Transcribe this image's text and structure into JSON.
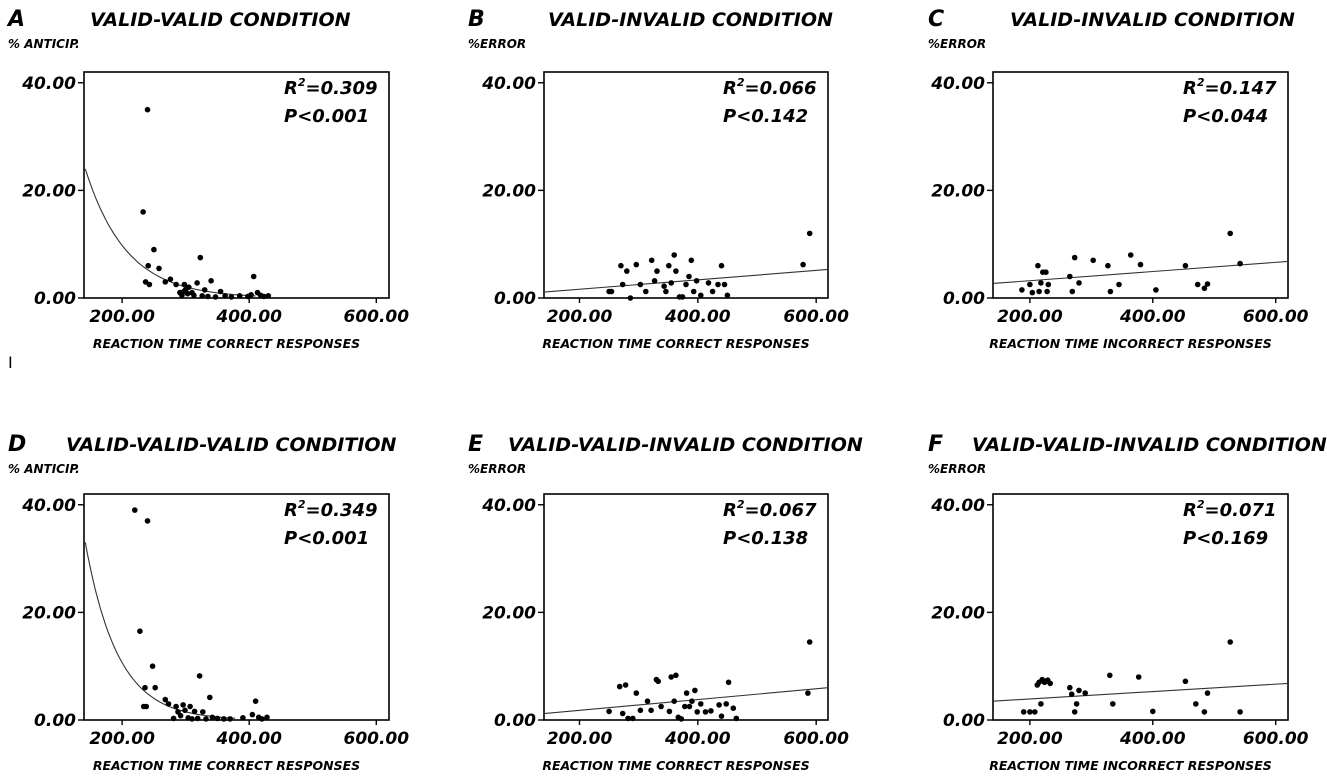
{
  "stray_mark": "I",
  "chart_data": [
    {
      "type": "scatter",
      "panel": "A",
      "title": "VALID-VALID CONDITION",
      "ylabel": "% ANTICIP.",
      "xlabel": "REACTION TIME CORRECT RESPONSES",
      "xlim": [
        140,
        620
      ],
      "ylim": [
        0,
        42
      ],
      "xticks": [
        "200.00",
        "400.00",
        "600.00"
      ],
      "yticks": [
        "0.00",
        "20.00",
        "40.00"
      ],
      "r2_prefix": "R",
      "r2_exp": "2",
      "r2_value": "=0.309",
      "p_text": "P<0.001",
      "fit": {
        "kind": "exponential",
        "a": 24.0,
        "b": 0.0155,
        "x0": 142,
        "x1": 410
      },
      "points": [
        [
          233,
          16
        ],
        [
          237,
          3
        ],
        [
          241,
          6
        ],
        [
          240,
          35
        ],
        [
          243,
          2.5
        ],
        [
          250,
          9
        ],
        [
          258,
          5.5
        ],
        [
          268,
          3
        ],
        [
          276,
          3.5
        ],
        [
          285,
          2.5
        ],
        [
          291,
          1
        ],
        [
          294,
          0.5
        ],
        [
          297,
          1.2
        ],
        [
          298,
          2.5
        ],
        [
          300,
          1.6
        ],
        [
          303,
          0.8
        ],
        [
          305,
          2
        ],
        [
          310,
          1
        ],
        [
          313,
          0.5
        ],
        [
          318,
          2.8
        ],
        [
          323,
          7.5
        ],
        [
          326,
          0.4
        ],
        [
          330,
          1.5
        ],
        [
          335,
          0.3
        ],
        [
          340,
          3.2
        ],
        [
          347,
          0.2
        ],
        [
          355,
          1.2
        ],
        [
          362,
          0.4
        ],
        [
          372,
          0.2
        ],
        [
          385,
          0.4
        ],
        [
          398,
          0.3
        ],
        [
          403,
          0.6
        ],
        [
          407,
          4
        ],
        [
          413,
          1
        ],
        [
          418,
          0.5
        ],
        [
          423,
          0.3
        ],
        [
          430,
          0.4
        ]
      ]
    },
    {
      "type": "scatter",
      "panel": "B",
      "title": "VALID-INVALID CONDITION",
      "ylabel": "%ERROR",
      "xlabel": "REACTION TIME CORRECT RESPONSES",
      "xlim": [
        140,
        620
      ],
      "ylim": [
        0,
        42
      ],
      "xticks": [
        "200.00",
        "400.00",
        "600.00"
      ],
      "yticks": [
        "0.00",
        "20.00",
        "40.00"
      ],
      "r2_prefix": "R",
      "r2_exp": "2",
      "r2_value": "=0.066",
      "p_text": "P<0.142",
      "fit": {
        "kind": "linear",
        "x0": 140,
        "y0": 1.1,
        "x1": 620,
        "y1": 5.3
      },
      "points": [
        [
          250,
          1.2
        ],
        [
          254,
          1.2
        ],
        [
          270,
          6
        ],
        [
          273,
          2.5
        ],
        [
          280,
          5
        ],
        [
          286,
          0
        ],
        [
          296,
          6.2
        ],
        [
          303,
          2.5
        ],
        [
          312,
          1.2
        ],
        [
          322,
          7
        ],
        [
          327,
          3.2
        ],
        [
          331,
          5
        ],
        [
          343,
          2.2
        ],
        [
          346,
          1.2
        ],
        [
          351,
          6
        ],
        [
          355,
          2.8
        ],
        [
          360,
          8
        ],
        [
          363,
          5
        ],
        [
          369,
          0.2
        ],
        [
          374,
          0.2
        ],
        [
          380,
          2.5
        ],
        [
          385,
          4
        ],
        [
          389,
          7
        ],
        [
          393,
          1.2
        ],
        [
          398,
          3.2
        ],
        [
          405,
          0.5
        ],
        [
          418,
          2.8
        ],
        [
          425,
          1.2
        ],
        [
          434,
          2.5
        ],
        [
          440,
          6
        ],
        [
          445,
          2.5
        ],
        [
          450,
          0.5
        ],
        [
          578,
          6.2
        ],
        [
          589,
          12
        ]
      ]
    },
    {
      "type": "scatter",
      "panel": "C",
      "title": "VALID-INVALID CONDITION",
      "ylabel": "%ERROR",
      "xlabel": "REACTION TIME INCORRECT RESPONSES",
      "xlim": [
        140,
        620
      ],
      "ylim": [
        0,
        42
      ],
      "xticks": [
        "200.00",
        "400.00",
        "600.00"
      ],
      "yticks": [
        "0.00",
        "20.00",
        "40.00"
      ],
      "r2_prefix": "R",
      "r2_exp": "2",
      "r2_value": "=0.147",
      "p_text": "P<0.044",
      "fit": {
        "kind": "linear",
        "x0": 140,
        "y0": 2.7,
        "x1": 620,
        "y1": 6.8
      },
      "points": [
        [
          187,
          1.5
        ],
        [
          200,
          2.5
        ],
        [
          204,
          1
        ],
        [
          213,
          6
        ],
        [
          215,
          1.2
        ],
        [
          218,
          2.8
        ],
        [
          221,
          4.8
        ],
        [
          226,
          4.8
        ],
        [
          228,
          1.2
        ],
        [
          230,
          2.5
        ],
        [
          265,
          4
        ],
        [
          269,
          1.2
        ],
        [
          273,
          7.5
        ],
        [
          280,
          2.8
        ],
        [
          303,
          7
        ],
        [
          327,
          6
        ],
        [
          331,
          1.2
        ],
        [
          345,
          2.5
        ],
        [
          364,
          8
        ],
        [
          380,
          6.2
        ],
        [
          405,
          1.5
        ],
        [
          453,
          6
        ],
        [
          473,
          2.5
        ],
        [
          484,
          1.8
        ],
        [
          489,
          2.6
        ],
        [
          526,
          12
        ],
        [
          542,
          6.4
        ]
      ]
    },
    {
      "type": "scatter",
      "panel": "D",
      "title": "VALID-VALID-VALID CONDITION",
      "ylabel": "% ANTICIP.",
      "xlabel": "REACTION TIME CORRECT RESPONSES",
      "xlim": [
        140,
        620
      ],
      "ylim": [
        0,
        42
      ],
      "xticks": [
        "200.00",
        "400.00",
        "600.00"
      ],
      "yticks": [
        "0.00",
        "20.00",
        "40.00"
      ],
      "r2_prefix": "R",
      "r2_exp": "2",
      "r2_value": "=0.349",
      "p_text": "P<0.001",
      "fit": {
        "kind": "exponential",
        "a": 33.0,
        "b": 0.0195,
        "x0": 142,
        "x1": 380
      },
      "points": [
        [
          220,
          39
        ],
        [
          228,
          16.5
        ],
        [
          234,
          2.5
        ],
        [
          236,
          6
        ],
        [
          238,
          2.5
        ],
        [
          240,
          37
        ],
        [
          248,
          10
        ],
        [
          252,
          6
        ],
        [
          268,
          3.8
        ],
        [
          273,
          3
        ],
        [
          281,
          0.3
        ],
        [
          285,
          2.5
        ],
        [
          288,
          1.5
        ],
        [
          292,
          0.8
        ],
        [
          296,
          2.8
        ],
        [
          299,
          1.8
        ],
        [
          304,
          0.4
        ],
        [
          307,
          2.5
        ],
        [
          310,
          0.2
        ],
        [
          314,
          1.6
        ],
        [
          319,
          0.3
        ],
        [
          322,
          8.2
        ],
        [
          327,
          1.5
        ],
        [
          332,
          0.2
        ],
        [
          338,
          4.2
        ],
        [
          342,
          0.5
        ],
        [
          350,
          0.3
        ],
        [
          360,
          0.2
        ],
        [
          370,
          0.2
        ],
        [
          390,
          0.4
        ],
        [
          405,
          1
        ],
        [
          410,
          3.5
        ],
        [
          415,
          0.5
        ],
        [
          420,
          0.2
        ],
        [
          428,
          0.5
        ]
      ]
    },
    {
      "type": "scatter",
      "panel": "E",
      "title": "VALID-VALID-INVALID CONDITION",
      "ylabel": "%ERROR",
      "xlabel": "REACTION TIME CORRECT RESPONSES",
      "xlim": [
        140,
        620
      ],
      "ylim": [
        0,
        42
      ],
      "xticks": [
        "200.00",
        "400.00",
        "600.00"
      ],
      "yticks": [
        "0.00",
        "20.00",
        "40.00"
      ],
      "r2_prefix": "R",
      "r2_exp": "2",
      "r2_value": "=0.067",
      "p_text": "P<0.138",
      "fit": {
        "kind": "linear",
        "x0": 140,
        "y0": 1.2,
        "x1": 620,
        "y1": 6.0
      },
      "points": [
        [
          250,
          1.6
        ],
        [
          268,
          6.2
        ],
        [
          273,
          1.2
        ],
        [
          278,
          6.5
        ],
        [
          282,
          0.3
        ],
        [
          290,
          0.3
        ],
        [
          296,
          5
        ],
        [
          303,
          1.8
        ],
        [
          315,
          3.5
        ],
        [
          321,
          1.8
        ],
        [
          330,
          7.5
        ],
        [
          333,
          7.2
        ],
        [
          338,
          2.5
        ],
        [
          352,
          1.6
        ],
        [
          355,
          8
        ],
        [
          360,
          3.5
        ],
        [
          363,
          8.3
        ],
        [
          367,
          0.5
        ],
        [
          372,
          0.2
        ],
        [
          378,
          2.5
        ],
        [
          381,
          5
        ],
        [
          386,
          2.5
        ],
        [
          390,
          3.5
        ],
        [
          395,
          5.5
        ],
        [
          399,
          1.5
        ],
        [
          405,
          3
        ],
        [
          413,
          1.5
        ],
        [
          422,
          1.7
        ],
        [
          436,
          2.8
        ],
        [
          440,
          0.7
        ],
        [
          448,
          3
        ],
        [
          452,
          7
        ],
        [
          460,
          2.2
        ],
        [
          465,
          0.3
        ],
        [
          586,
          5
        ],
        [
          589,
          14.5
        ]
      ]
    },
    {
      "type": "scatter",
      "panel": "F",
      "title": "VALID-VALID-INVALID CONDITION",
      "ylabel": "%ERROR",
      "xlabel": "REACTION TIME INCORRECT RESPONSES",
      "xlim": [
        140,
        620
      ],
      "ylim": [
        0,
        42
      ],
      "xticks": [
        "200.00",
        "400.00",
        "600.00"
      ],
      "yticks": [
        "0.00",
        "20.00",
        "40.00"
      ],
      "r2_prefix": "R",
      "r2_exp": "2",
      "r2_value": "=0.071",
      "p_text": "P<0.169",
      "fit": {
        "kind": "linear",
        "x0": 140,
        "y0": 3.5,
        "x1": 620,
        "y1": 6.8
      },
      "points": [
        [
          190,
          1.5
        ],
        [
          200,
          1.5
        ],
        [
          208,
          1.5
        ],
        [
          212,
          6.5
        ],
        [
          215,
          7
        ],
        [
          218,
          3
        ],
        [
          220,
          7.5
        ],
        [
          224,
          7
        ],
        [
          226,
          7.2
        ],
        [
          229,
          7.4
        ],
        [
          233,
          6.8
        ],
        [
          265,
          6
        ],
        [
          268,
          4.8
        ],
        [
          273,
          1.5
        ],
        [
          276,
          3
        ],
        [
          280,
          5.5
        ],
        [
          290,
          5
        ],
        [
          330,
          8.3
        ],
        [
          335,
          3
        ],
        [
          377,
          8
        ],
        [
          400,
          1.6
        ],
        [
          453,
          7.2
        ],
        [
          470,
          3
        ],
        [
          484,
          1.5
        ],
        [
          489,
          5
        ],
        [
          526,
          14.5
        ],
        [
          542,
          1.5
        ]
      ]
    }
  ]
}
